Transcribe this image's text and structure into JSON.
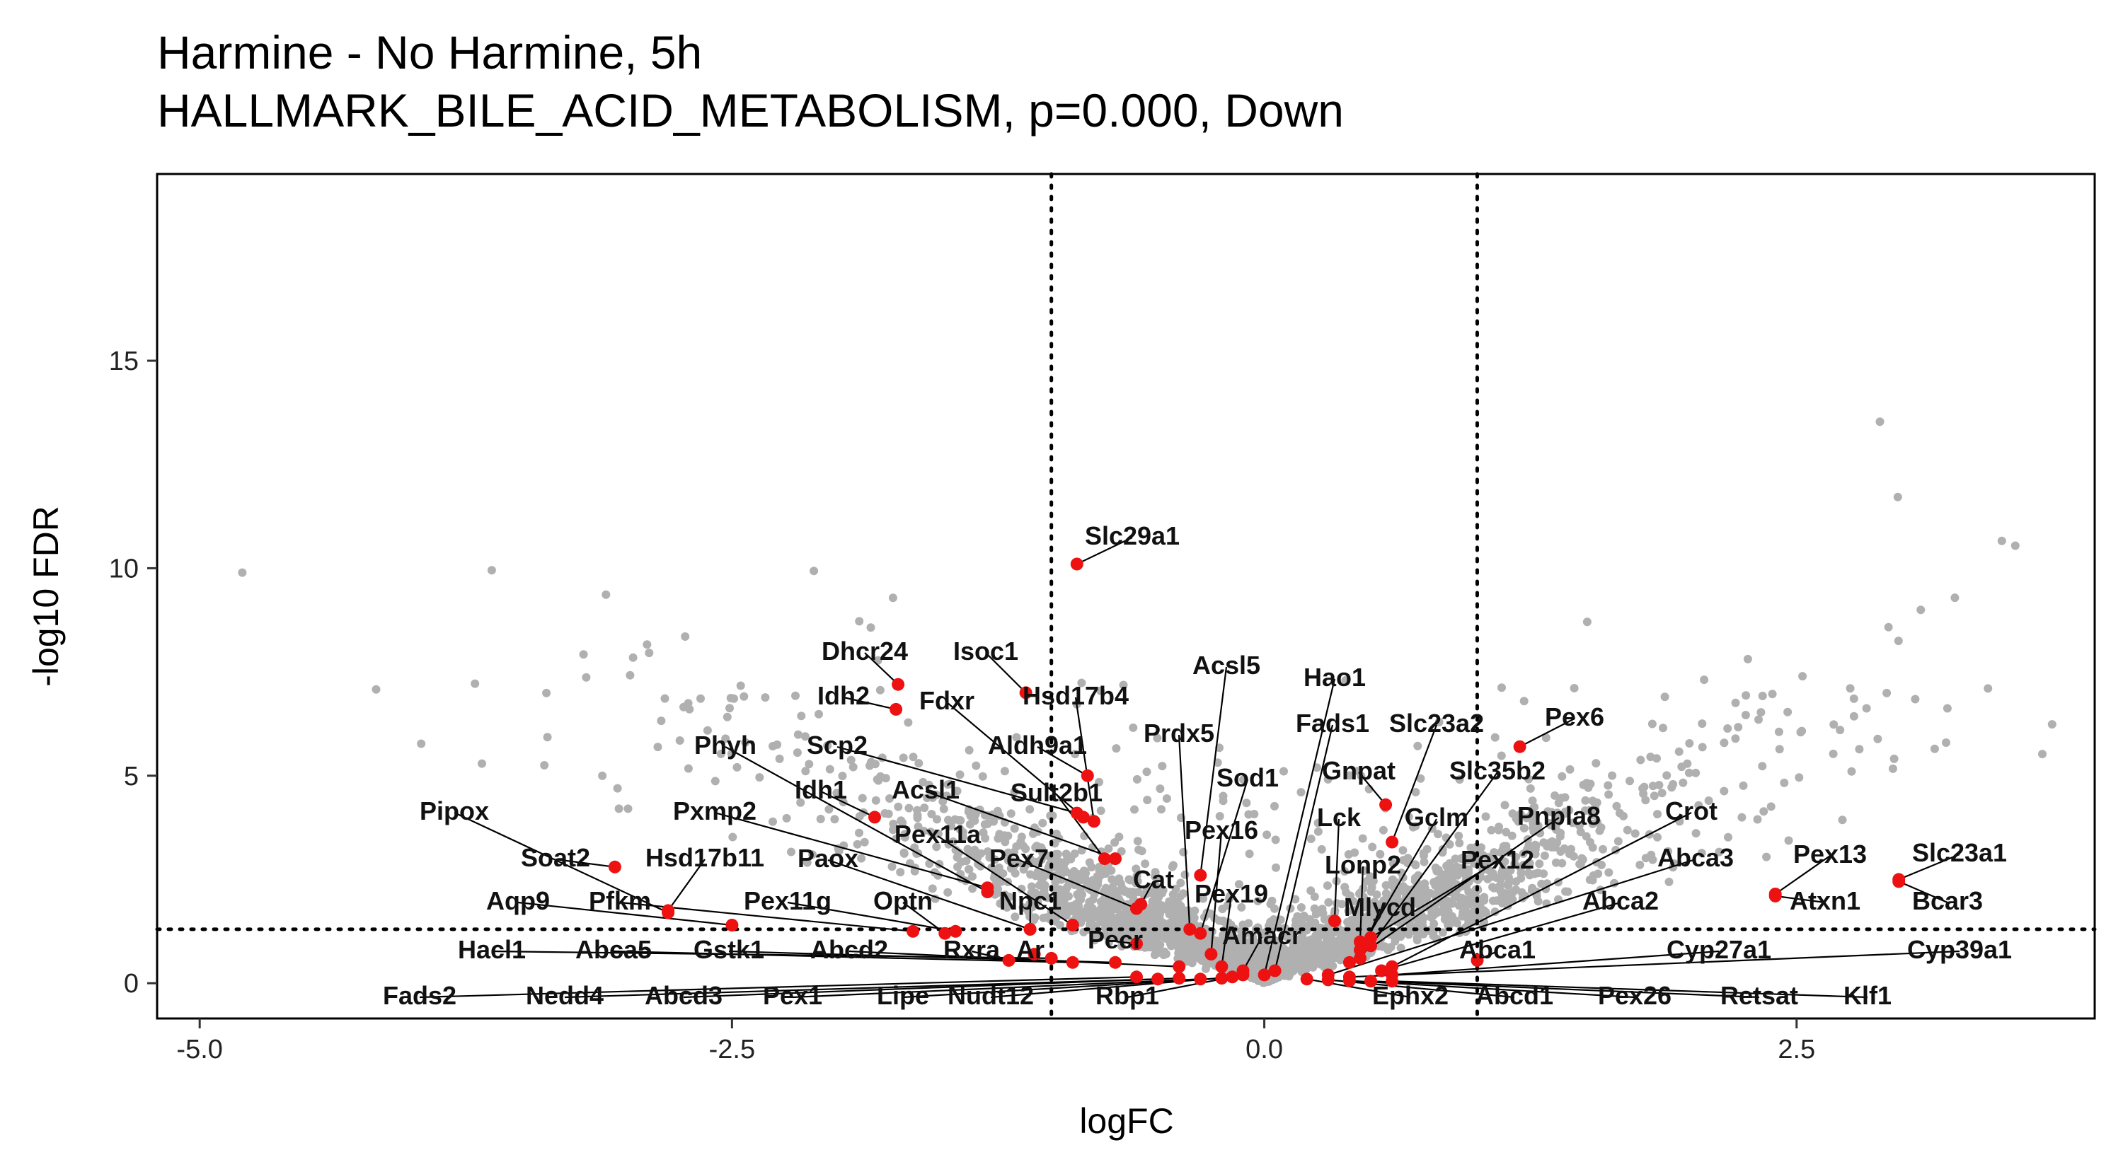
{
  "chart_data": {
    "type": "scatter",
    "title": "Harmine - No Harmine, 5h",
    "subtitle": "HALLMARK_BILE_ACID_METABOLISM, p=0.000, Down",
    "xlabel": "logFC",
    "ylabel": "-log10 FDR",
    "xlim": [
      -5.2,
      3.9
    ],
    "ylim": [
      -0.85,
      19.5
    ],
    "xticks": [
      "-5.0",
      "-2.5",
      "0.0",
      "2.5"
    ],
    "yticks": [
      "0",
      "5",
      "10",
      "15"
    ],
    "grid": false,
    "thresholds": {
      "logFC": [
        -1,
        1
      ],
      "neg_log10_fdr": 1.3
    },
    "colors": {
      "background_genes": "#b0b0b0",
      "set_genes": "#ee1111",
      "threshold_line": "#000000"
    },
    "highlighted_genes": [
      {
        "name": "Slc29a1",
        "x": -0.88,
        "y": 10.1
      },
      {
        "name": "Dhcr24",
        "x": -1.72,
        "y": 7.2
      },
      {
        "name": "Idh2",
        "x": -1.73,
        "y": 6.6
      },
      {
        "name": "Isoc1",
        "x": -1.12,
        "y": 7.0
      },
      {
        "name": "Hsd17b4",
        "x": -0.8,
        "y": 3.9
      },
      {
        "name": "Fdxr",
        "x": -0.85,
        "y": 4.0
      },
      {
        "name": "Aldh9a1",
        "x": -0.83,
        "y": 5.0
      },
      {
        "name": "Acsl5",
        "x": -0.3,
        "y": 2.6
      },
      {
        "name": "Prdx5",
        "x": -0.35,
        "y": 1.3
      },
      {
        "name": "Sod1",
        "x": -0.3,
        "y": 1.2
      },
      {
        "name": "Pex16",
        "x": -0.25,
        "y": 0.7
      },
      {
        "name": "Pex19",
        "x": -0.2,
        "y": 0.4
      },
      {
        "name": "Hao1",
        "x": 0.0,
        "y": 0.2
      },
      {
        "name": "Fads1",
        "x": 0.05,
        "y": 0.3
      },
      {
        "name": "Gnpat",
        "x": 0.57,
        "y": 4.3
      },
      {
        "name": "Lck",
        "x": 0.33,
        "y": 1.5
      },
      {
        "name": "Lonp2",
        "x": 0.45,
        "y": 1.0
      },
      {
        "name": "Slc23a2",
        "x": 0.6,
        "y": 3.4
      },
      {
        "name": "Slc35b2",
        "x": 0.5,
        "y": 0.9
      },
      {
        "name": "Gclm",
        "x": 0.45,
        "y": 0.8
      },
      {
        "name": "Pex6",
        "x": 1.2,
        "y": 5.7
      },
      {
        "name": "Pnpla8",
        "x": 0.4,
        "y": 0.5
      },
      {
        "name": "Crot",
        "x": 0.6,
        "y": 0.4
      },
      {
        "name": "Abca3",
        "x": 0.3,
        "y": 0.2
      },
      {
        "name": "Pex13",
        "x": 2.4,
        "y": 2.15
      },
      {
        "name": "Slc23a1",
        "x": 2.98,
        "y": 2.5
      },
      {
        "name": "Atxn1",
        "x": 2.4,
        "y": 2.1
      },
      {
        "name": "Bcar3",
        "x": 2.98,
        "y": 2.45
      },
      {
        "name": "Pex12",
        "x": 0.5,
        "y": 1.1
      },
      {
        "name": "Mlycd",
        "x": 0.45,
        "y": 0.6
      },
      {
        "name": "Abca2",
        "x": 0.55,
        "y": 0.3
      },
      {
        "name": "Abca1",
        "x": 1.0,
        "y": 0.55
      },
      {
        "name": "Cyp27a1",
        "x": 0.6,
        "y": 0.2
      },
      {
        "name": "Cyp39a1",
        "x": 0.4,
        "y": 0.15
      },
      {
        "name": "Amacr",
        "x": -0.1,
        "y": 0.3
      },
      {
        "name": "Pipox",
        "x": -2.8,
        "y": 1.7
      },
      {
        "name": "Soat2",
        "x": -3.05,
        "y": 2.8
      },
      {
        "name": "Hsd17b11",
        "x": -2.8,
        "y": 1.75
      },
      {
        "name": "Aqp9",
        "x": -2.5,
        "y": 1.4
      },
      {
        "name": "Pfkm",
        "x": -1.65,
        "y": 1.25
      },
      {
        "name": "Phyh",
        "x": -1.3,
        "y": 2.2
      },
      {
        "name": "Scp2",
        "x": -0.88,
        "y": 4.1
      },
      {
        "name": "Idh1",
        "x": -1.83,
        "y": 4.0
      },
      {
        "name": "Acsl1",
        "x": -0.7,
        "y": 3.0
      },
      {
        "name": "Sult2b1",
        "x": -0.75,
        "y": 3.0
      },
      {
        "name": "Pxmp2",
        "x": -1.3,
        "y": 2.3
      },
      {
        "name": "Pex11a",
        "x": -0.9,
        "y": 1.4
      },
      {
        "name": "Pex7",
        "x": -0.6,
        "y": 1.8
      },
      {
        "name": "Cat",
        "x": -0.58,
        "y": 1.9
      },
      {
        "name": "Paox",
        "x": -1.1,
        "y": 1.3
      },
      {
        "name": "Pex11g",
        "x": -1.45,
        "y": 1.25
      },
      {
        "name": "Optn",
        "x": -1.5,
        "y": 1.2
      },
      {
        "name": "Npc1",
        "x": -1.1,
        "y": 1.3
      },
      {
        "name": "Ar",
        "x": -1.08,
        "y": 0.7
      },
      {
        "name": "Pecr",
        "x": -0.6,
        "y": 0.95
      },
      {
        "name": "Hacl1",
        "x": -1.0,
        "y": 0.6
      },
      {
        "name": "Abca5",
        "x": -0.9,
        "y": 0.5
      },
      {
        "name": "Gstk1",
        "x": -0.7,
        "y": 0.5
      },
      {
        "name": "Abcd2",
        "x": -0.4,
        "y": 0.4
      },
      {
        "name": "Rxra",
        "x": -1.2,
        "y": 0.55
      },
      {
        "name": "Fads2",
        "x": -0.6,
        "y": 0.15
      },
      {
        "name": "Nedd4",
        "x": -0.5,
        "y": 0.1
      },
      {
        "name": "Abcd3",
        "x": -0.4,
        "y": 0.12
      },
      {
        "name": "Pex1",
        "x": -0.3,
        "y": 0.1
      },
      {
        "name": "Lipe",
        "x": -0.2,
        "y": 0.12
      },
      {
        "name": "Nudt12",
        "x": -0.15,
        "y": 0.15
      },
      {
        "name": "Rbp1",
        "x": -0.1,
        "y": 0.2
      },
      {
        "name": "Ephx2",
        "x": 0.2,
        "y": 0.1
      },
      {
        "name": "Abcd1",
        "x": 0.3,
        "y": 0.08
      },
      {
        "name": "Pex26",
        "x": 0.4,
        "y": 0.06
      },
      {
        "name": "Retsat",
        "x": 0.5,
        "y": 0.05
      },
      {
        "name": "Klf1",
        "x": 0.6,
        "y": 0.05
      }
    ]
  }
}
